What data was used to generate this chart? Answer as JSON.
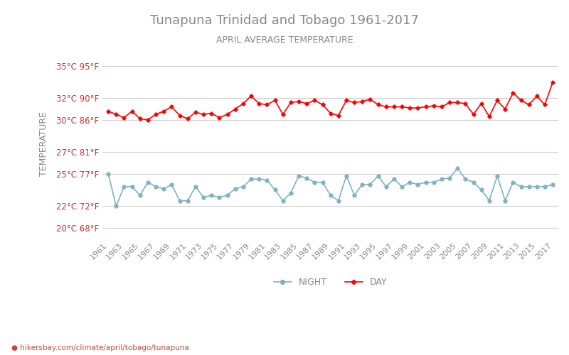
{
  "title": "Tunapuna Trinidad and Tobago 1961-2017",
  "subtitle": "APRIL AVERAGE TEMPERATURE",
  "ylabel": "TEMPERATURE",
  "xlabel_url": "hikersbay.com/climate/april/tobago/tunapuna",
  "years": [
    1961,
    1962,
    1963,
    1964,
    1965,
    1966,
    1967,
    1968,
    1969,
    1970,
    1971,
    1972,
    1973,
    1974,
    1975,
    1976,
    1977,
    1978,
    1979,
    1980,
    1981,
    1982,
    1983,
    1984,
    1985,
    1986,
    1987,
    1988,
    1989,
    1990,
    1991,
    1992,
    1993,
    1994,
    1995,
    1996,
    1997,
    1998,
    1999,
    2000,
    2001,
    2002,
    2003,
    2004,
    2005,
    2006,
    2007,
    2008,
    2009,
    2010,
    2011,
    2012,
    2013,
    2014,
    2015,
    2016,
    2017
  ],
  "day_temps": [
    30.8,
    30.5,
    30.2,
    30.8,
    30.1,
    30.0,
    30.5,
    30.8,
    31.2,
    30.4,
    30.1,
    30.7,
    30.5,
    30.6,
    30.2,
    30.5,
    31.0,
    31.5,
    32.2,
    31.5,
    31.4,
    31.8,
    30.5,
    31.6,
    31.7,
    31.5,
    31.8,
    31.4,
    30.6,
    30.4,
    31.8,
    31.6,
    31.7,
    31.9,
    31.4,
    31.2,
    31.2,
    31.2,
    31.1,
    31.1,
    31.2,
    31.3,
    31.2,
    31.6,
    31.6,
    31.5,
    30.5,
    31.5,
    30.3,
    31.8,
    31.0,
    32.5,
    31.8,
    31.4,
    32.2,
    31.4,
    33.5
  ],
  "night_temps": [
    25.0,
    22.0,
    23.8,
    23.8,
    23.0,
    24.2,
    23.8,
    23.6,
    24.0,
    22.5,
    22.5,
    23.8,
    22.8,
    23.0,
    22.8,
    23.0,
    23.6,
    23.8,
    24.5,
    24.5,
    24.4,
    23.5,
    22.5,
    23.2,
    24.8,
    24.6,
    24.2,
    24.2,
    23.0,
    22.5,
    24.8,
    23.0,
    24.0,
    24.0,
    24.8,
    23.8,
    24.5,
    23.8,
    24.2,
    24.0,
    24.2,
    24.2,
    24.5,
    24.6,
    25.5,
    24.5,
    24.2,
    23.5,
    22.5,
    24.8,
    22.5,
    24.2,
    23.8,
    23.8,
    23.8,
    23.8,
    24.0
  ],
  "day_color": "#ff0000",
  "night_color": "#7fb3c0",
  "day_marker": "D",
  "night_marker": "o",
  "bg_color": "#ffffff",
  "grid_color": "#d0d0d0",
  "title_color": "#888888",
  "subtitle_color": "#888888",
  "ylabel_color": "#888888",
  "tick_color": "#cc3333",
  "ylim_min": 19.0,
  "ylim_max": 36.5,
  "yticks_c": [
    20,
    22,
    25,
    27,
    30,
    32,
    35
  ],
  "ytick_labels": [
    "20°C 68°F",
    "22°C 72°F",
    "25°C 77°F",
    "27°C 81°F",
    "30°C 86°F",
    "32°C 90°F",
    "35°C 95°F"
  ],
  "xtick_years": [
    1961,
    1963,
    1965,
    1967,
    1969,
    1971,
    1973,
    1975,
    1977,
    1979,
    1981,
    1983,
    1985,
    1987,
    1989,
    1991,
    1993,
    1995,
    1997,
    1999,
    2001,
    2003,
    2005,
    2007,
    2009,
    2011,
    2013,
    2015,
    2017
  ],
  "legend_night": "NIGHT",
  "legend_day": "DAY",
  "marker_size": 3.5,
  "line_width": 1.2
}
